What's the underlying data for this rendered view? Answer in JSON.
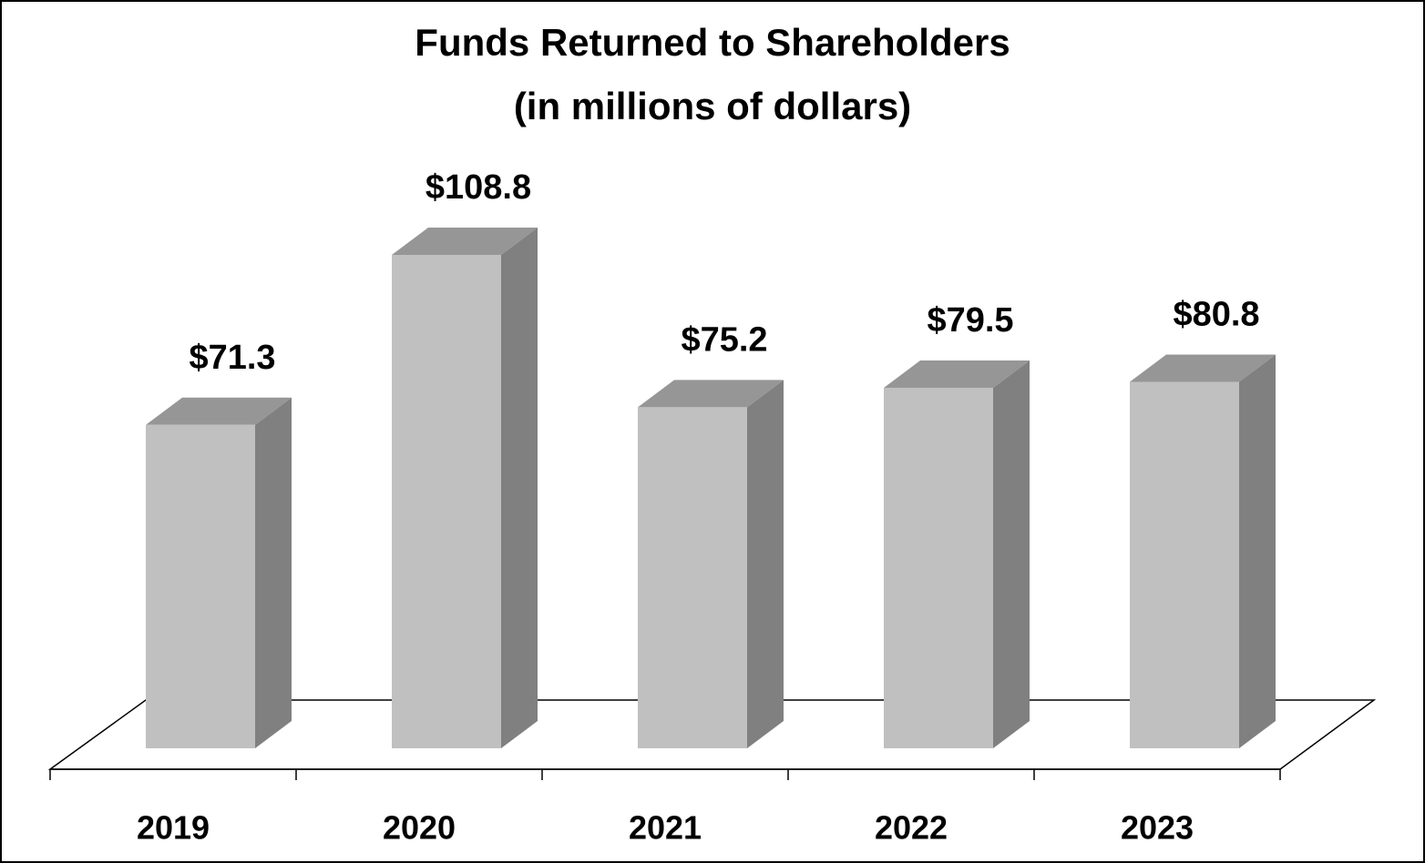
{
  "chart_data": {
    "type": "bar3d",
    "title": "Funds Returned to Shareholders",
    "subtitle": "(in millions of dollars)",
    "categories": [
      "2019",
      "2020",
      "2021",
      "2022",
      "2023"
    ],
    "values": [
      71.3,
      108.8,
      75.2,
      79.5,
      80.8
    ],
    "value_labels": [
      "$71.3",
      "$108.8",
      "$75.2",
      "$79.5",
      "$80.8"
    ],
    "colors": {
      "front": "#c0c0c0",
      "side": "#808080",
      "top": "#969696"
    }
  }
}
